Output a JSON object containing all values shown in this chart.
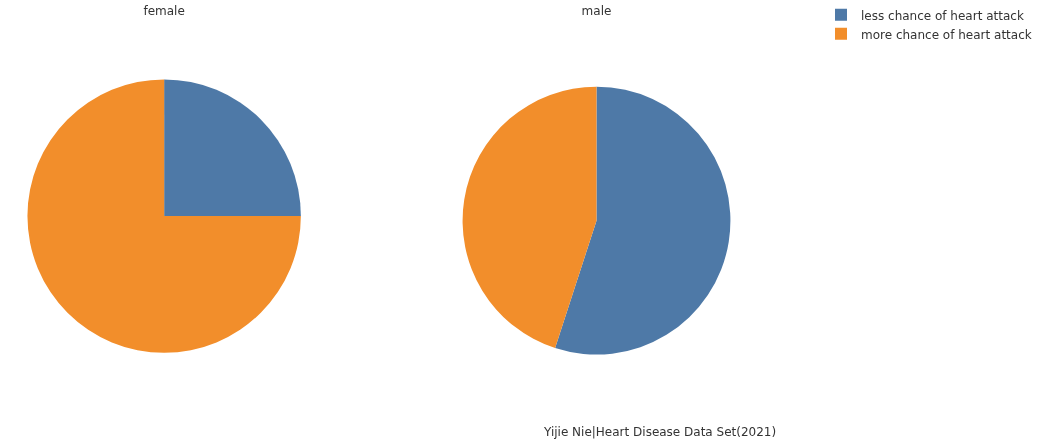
{
  "chart_data": [
    {
      "type": "pie",
      "title": "female",
      "categories": [
        null,
        null
      ],
      "values": [
        25,
        75
      ],
      "colors": [
        "#4e79a7",
        "#f28e2b"
      ]
    },
    {
      "type": "pie",
      "title": "male",
      "categories": [
        "less chance of heart attack",
        "more chance of heart attack"
      ],
      "values": [
        55,
        45
      ],
      "colors": [
        "#4e79a7",
        "#f28e2b"
      ],
      "legend": "top right",
      "annotations": [
        "Yijie Nie|Heart Disease Data Set(2021)"
      ]
    }
  ]
}
